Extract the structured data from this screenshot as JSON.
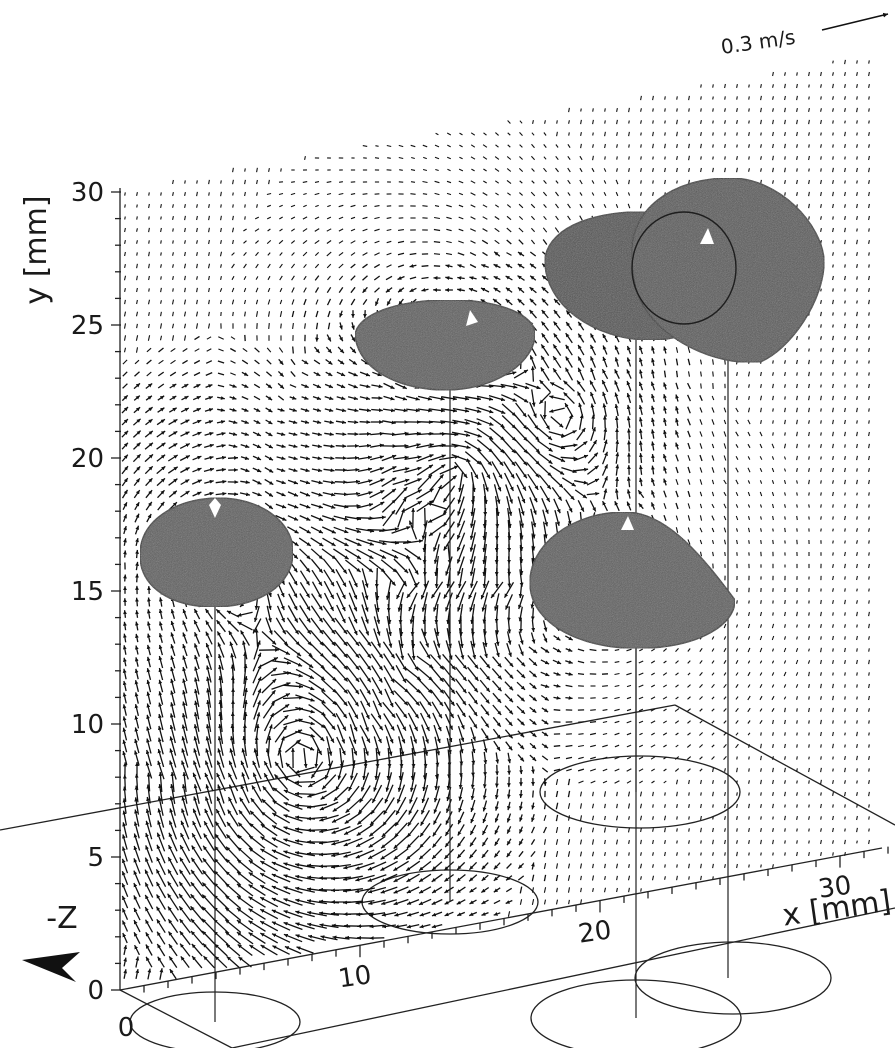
{
  "chart_data": {
    "type": "scatter",
    "subtype": "3d-velocity-vector-field",
    "title": "",
    "xlabel": "x [mm]",
    "ylabel": "y [mm]",
    "zlabel": "-Z",
    "x_ticks": [
      "10",
      "20",
      "30"
    ],
    "y_ticks": [
      "0",
      "5",
      "10",
      "15",
      "20",
      "25",
      "30"
    ],
    "origin_label": "0",
    "xlim": [
      0,
      32
    ],
    "ylim": [
      0,
      30
    ],
    "reference_vector": {
      "label": "0.3 m/s",
      "value": 0.3
    },
    "bubbles": [
      {
        "x": 3.5,
        "y": 16,
        "z": 0
      },
      {
        "x": 12.5,
        "y": 24,
        "z": 4
      },
      {
        "x": 21.5,
        "y": 17,
        "z": 0
      },
      {
        "x": 20,
        "y": 27.5,
        "z": 5
      },
      {
        "x": 25,
        "y": 28.5,
        "z": 0
      }
    ],
    "grid": false,
    "legend": "none",
    "colors": {
      "bubble": "#5a5a5a",
      "vector": "#111111",
      "axis": "#222222"
    }
  }
}
